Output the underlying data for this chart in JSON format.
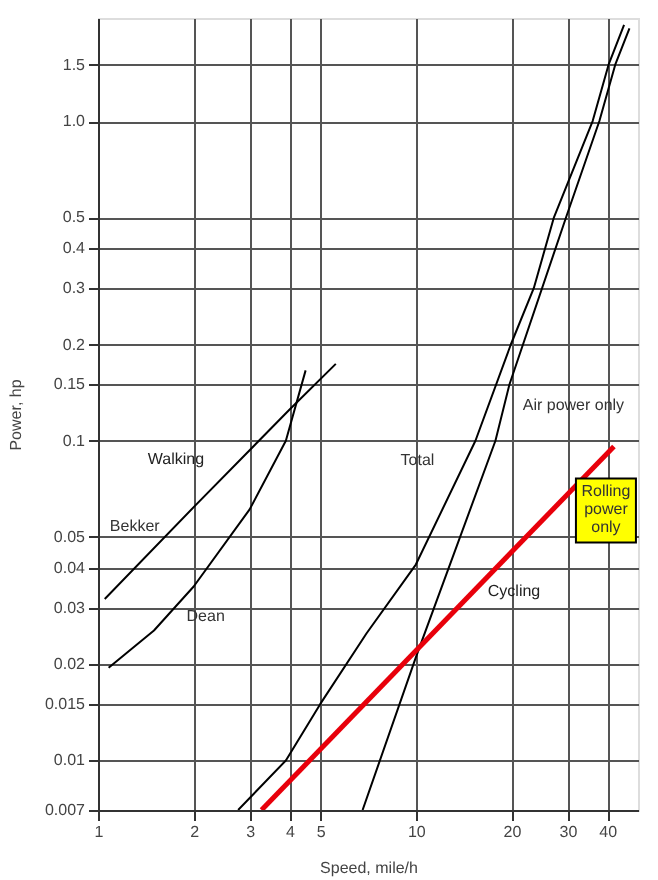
{
  "chart_data": {
    "type": "line",
    "xlabel": "Speed, mile/h",
    "ylabel": "Power, hp",
    "log": "xy",
    "grid": true,
    "marker": "none",
    "line_style": "solid",
    "xlim": [
      1,
      50
    ],
    "ylim": [
      0.007,
      2.1
    ],
    "xticks": [
      1,
      2,
      3,
      4,
      5,
      10,
      20,
      30,
      40
    ],
    "yticks": [
      0.007,
      0.01,
      0.015,
      0.02,
      0.03,
      0.04,
      0.05,
      0.1,
      0.15,
      0.2,
      0.3,
      0.4,
      0.5,
      {
        "value": 1,
        "label": "1.0"
      },
      1.5
    ],
    "series": [
      {
        "name": "Bekker",
        "color": "#000000",
        "x": [
          1.05,
          2,
          4,
          5.6
        ],
        "values": [
          0.032,
          0.062,
          0.125,
          0.174
        ]
      },
      {
        "name": "Dean",
        "color": "#000000",
        "x": [
          1.08,
          1.5,
          2,
          3,
          3.9,
          4.5
        ],
        "values": [
          0.0195,
          0.0255,
          0.035,
          0.061,
          0.1,
          0.166
        ]
      },
      {
        "name": "Total",
        "color": "#000000",
        "x": [
          2.76,
          3.9,
          5,
          7,
          10,
          15.4,
          19.9,
          23.5,
          27.2,
          36,
          40.4,
          45.2
        ],
        "values": [
          0.007,
          0.01,
          0.015,
          0.025,
          0.041,
          0.1,
          0.2,
          0.3,
          0.5,
          1.0,
          1.5,
          2.0
        ]
      },
      {
        "name": "Air power only",
        "color": "#000000",
        "x": [
          6.8,
          10,
          17.8,
          19.7,
          29.7,
          37.8,
          42.4,
          47
        ],
        "values": [
          0.007,
          0.021,
          0.1,
          0.15,
          0.5,
          1.0,
          1.5,
          1.95
        ]
      },
      {
        "name": "Rolling power only",
        "color": "#e8000b",
        "x": [
          3.27,
          42
        ],
        "values": [
          0.007,
          0.096
        ]
      }
    ],
    "annotations": [
      "Walking",
      "Cycling"
    ]
  }
}
